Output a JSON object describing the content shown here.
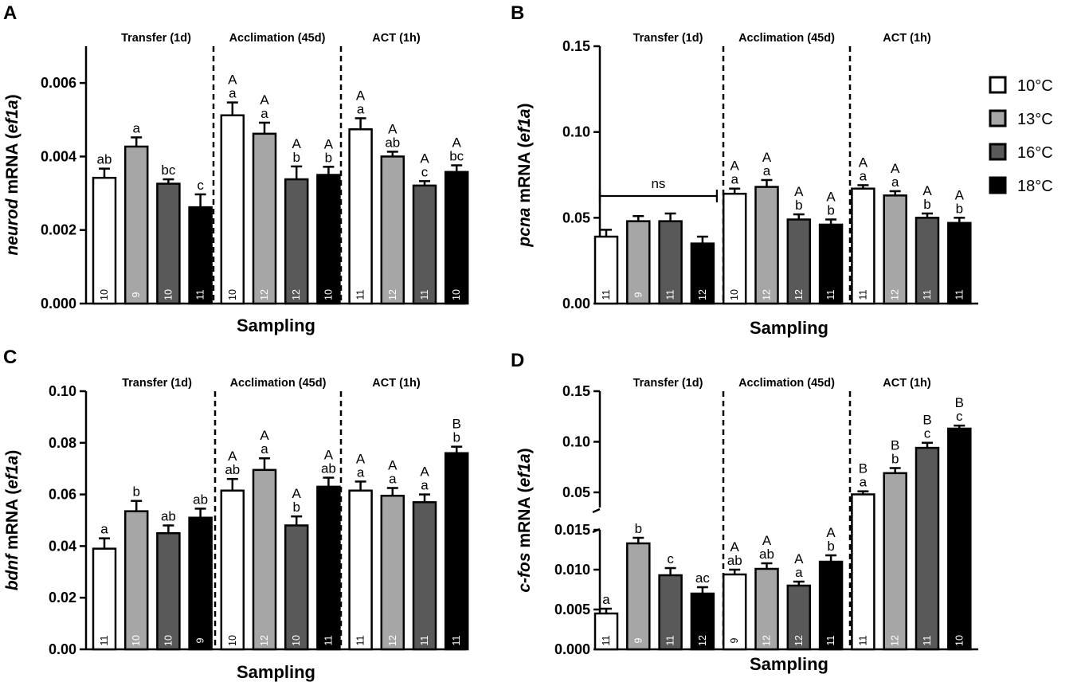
{
  "groups_legend": [
    {
      "label": "10°C",
      "color": "#ffffff"
    },
    {
      "label": "13°C",
      "color": "#a6a6a6"
    },
    {
      "label": "16°C",
      "color": "#595959"
    },
    {
      "label": "18°C",
      "color": "#000000"
    }
  ],
  "chart_data": [
    {
      "panel": "A",
      "type": "bar",
      "xlabel": "Sampling",
      "ylabel_gene": "neurod",
      "ylabel_rest": " mRNA (",
      "ylabel_ref": "ef1a",
      "ylabel_end": ")",
      "ylim": [
        0,
        0.007
      ],
      "yticks": [
        "0.000",
        "0.002",
        "0.004",
        "0.006"
      ],
      "ytick_values": [
        0,
        0.002,
        0.004,
        0.006
      ],
      "sections": [
        "Transfer (1d)",
        "Acclimation (45d)",
        "ACT (1h)"
      ],
      "bars": [
        {
          "value": 0.00342,
          "err": 0.00025,
          "upper": "",
          "lower": "ab",
          "n": "10"
        },
        {
          "value": 0.00427,
          "err": 0.00025,
          "upper": "",
          "lower": "a",
          "n": "9"
        },
        {
          "value": 0.00326,
          "err": 0.00012,
          "upper": "",
          "lower": "bc",
          "n": "10"
        },
        {
          "value": 0.00262,
          "err": 0.00035,
          "upper": "",
          "lower": "c",
          "n": "11"
        },
        {
          "value": 0.00512,
          "err": 0.00035,
          "upper": "A",
          "lower": "a",
          "n": "10"
        },
        {
          "value": 0.00462,
          "err": 0.0003,
          "upper": "A",
          "lower": "a",
          "n": "12"
        },
        {
          "value": 0.00338,
          "err": 0.00035,
          "upper": "A",
          "lower": "b",
          "n": "12"
        },
        {
          "value": 0.0035,
          "err": 0.00022,
          "upper": "A",
          "lower": "b",
          "n": "10"
        },
        {
          "value": 0.00474,
          "err": 0.0003,
          "upper": "A",
          "lower": "a",
          "n": "11"
        },
        {
          "value": 0.004,
          "err": 0.00013,
          "upper": "A",
          "lower": "ab",
          "n": "12"
        },
        {
          "value": 0.00321,
          "err": 0.00012,
          "upper": "A",
          "lower": "c",
          "n": "11"
        },
        {
          "value": 0.00358,
          "err": 0.00018,
          "upper": "A",
          "lower": "bc",
          "n": "10"
        }
      ]
    },
    {
      "panel": "B",
      "type": "bar",
      "xlabel": "Sampling",
      "ylabel_gene": "pcna",
      "ylabel_rest": " mRNA (",
      "ylabel_ref": "ef1a",
      "ylabel_end": ")",
      "ylim": [
        0,
        0.15
      ],
      "yticks": [
        "0.00",
        "0.05",
        "0.10",
        "0.15"
      ],
      "ytick_values": [
        0,
        0.05,
        0.1,
        0.15
      ],
      "sections": [
        "Transfer (1d)",
        "Acclimation (45d)",
        "ACT (1h)"
      ],
      "ns_label": "ns",
      "bars": [
        {
          "value": 0.039,
          "err": 0.004,
          "upper": "",
          "lower": "",
          "n": "11"
        },
        {
          "value": 0.048,
          "err": 0.003,
          "upper": "",
          "lower": "",
          "n": "9"
        },
        {
          "value": 0.048,
          "err": 0.0045,
          "upper": "",
          "lower": "",
          "n": "11"
        },
        {
          "value": 0.035,
          "err": 0.004,
          "upper": "",
          "lower": "",
          "n": "12"
        },
        {
          "value": 0.064,
          "err": 0.003,
          "upper": "A",
          "lower": "a",
          "n": "10"
        },
        {
          "value": 0.068,
          "err": 0.004,
          "upper": "A",
          "lower": "a",
          "n": "12"
        },
        {
          "value": 0.049,
          "err": 0.003,
          "upper": "A",
          "lower": "b",
          "n": "12"
        },
        {
          "value": 0.046,
          "err": 0.003,
          "upper": "A",
          "lower": "b",
          "n": "11"
        },
        {
          "value": 0.067,
          "err": 0.002,
          "upper": "A",
          "lower": "a",
          "n": "11"
        },
        {
          "value": 0.063,
          "err": 0.0025,
          "upper": "A",
          "lower": "a",
          "n": "12"
        },
        {
          "value": 0.05,
          "err": 0.0025,
          "upper": "A",
          "lower": "b",
          "n": "11"
        },
        {
          "value": 0.047,
          "err": 0.003,
          "upper": "A",
          "lower": "b",
          "n": "11"
        }
      ]
    },
    {
      "panel": "C",
      "type": "bar",
      "xlabel": "Sampling",
      "ylabel_gene": "bdnf",
      "ylabel_rest": " mRNA (",
      "ylabel_ref": "ef1a",
      "ylabel_end": ")",
      "ylim": [
        0,
        0.1
      ],
      "yticks": [
        "0.00",
        "0.02",
        "0.04",
        "0.06",
        "0.08",
        "0.10"
      ],
      "ytick_values": [
        0,
        0.02,
        0.04,
        0.06,
        0.08,
        0.1
      ],
      "sections": [
        "Transfer (1d)",
        "Acclimation (45d)",
        "ACT (1h)"
      ],
      "bars": [
        {
          "value": 0.039,
          "err": 0.004,
          "upper": "",
          "lower": "a",
          "n": "11"
        },
        {
          "value": 0.0535,
          "err": 0.004,
          "upper": "",
          "lower": "b",
          "n": "10"
        },
        {
          "value": 0.045,
          "err": 0.003,
          "upper": "",
          "lower": "ab",
          "n": "10"
        },
        {
          "value": 0.051,
          "err": 0.0035,
          "upper": "",
          "lower": "ab",
          "n": "9"
        },
        {
          "value": 0.0615,
          "err": 0.0045,
          "upper": "A",
          "lower": "ab",
          "n": "10"
        },
        {
          "value": 0.0695,
          "err": 0.0045,
          "upper": "A",
          "lower": "a",
          "n": "12"
        },
        {
          "value": 0.048,
          "err": 0.0035,
          "upper": "A",
          "lower": "b",
          "n": "10"
        },
        {
          "value": 0.063,
          "err": 0.0035,
          "upper": "A",
          "lower": "ab",
          "n": "11"
        },
        {
          "value": 0.0615,
          "err": 0.0035,
          "upper": "A",
          "lower": "a",
          "n": "11"
        },
        {
          "value": 0.0595,
          "err": 0.003,
          "upper": "A",
          "lower": "a",
          "n": "12"
        },
        {
          "value": 0.057,
          "err": 0.003,
          "upper": "A",
          "lower": "a",
          "n": "11"
        },
        {
          "value": 0.076,
          "err": 0.0025,
          "upper": "B",
          "lower": "b",
          "n": "11"
        }
      ]
    },
    {
      "panel": "D",
      "type": "bar",
      "xlabel": "Sampling",
      "ylabel_gene": "c-fos",
      "ylabel_rest": " mRNA (",
      "ylabel_ref": "ef1a",
      "ylabel_end": ")",
      "axis_break": true,
      "lower_ylim": [
        0,
        0.015
      ],
      "upper_ylim": [
        0.035,
        0.15
      ],
      "yticks_lower": [
        "0.000",
        "0.005",
        "0.010",
        "0.015"
      ],
      "ytick_values_lower": [
        0,
        0.005,
        0.01,
        0.015
      ],
      "yticks_upper": [
        "0.05",
        "0.10",
        "0.15"
      ],
      "ytick_values_upper": [
        0.05,
        0.1,
        0.15
      ],
      "sections": [
        "Transfer (1d)",
        "Acclimation (45d)",
        "ACT (1h)"
      ],
      "bars": [
        {
          "value": 0.0045,
          "err": 0.0006,
          "upper": "",
          "lower": "a",
          "n": "11"
        },
        {
          "value": 0.0133,
          "err": 0.0007,
          "upper": "",
          "lower": "b",
          "n": "9"
        },
        {
          "value": 0.0093,
          "err": 0.0009,
          "upper": "",
          "lower": "c",
          "n": "11"
        },
        {
          "value": 0.007,
          "err": 0.0008,
          "upper": "",
          "lower": "ac",
          "n": "12"
        },
        {
          "value": 0.0094,
          "err": 0.0006,
          "upper": "A",
          "lower": "ab",
          "n": "9"
        },
        {
          "value": 0.0101,
          "err": 0.0007,
          "upper": "A",
          "lower": "ab",
          "n": "12"
        },
        {
          "value": 0.008,
          "err": 0.0005,
          "upper": "A",
          "lower": "a",
          "n": "12"
        },
        {
          "value": 0.011,
          "err": 0.0008,
          "upper": "A",
          "lower": "b",
          "n": "11"
        },
        {
          "value": 0.048,
          "err": 0.003,
          "upper": "B",
          "lower": "a",
          "n": "11"
        },
        {
          "value": 0.069,
          "err": 0.005,
          "upper": "B",
          "lower": "b",
          "n": "12"
        },
        {
          "value": 0.094,
          "err": 0.005,
          "upper": "B",
          "lower": "c",
          "n": "11"
        },
        {
          "value": 0.113,
          "err": 0.003,
          "upper": "B",
          "lower": "c",
          "n": "10"
        }
      ]
    }
  ]
}
